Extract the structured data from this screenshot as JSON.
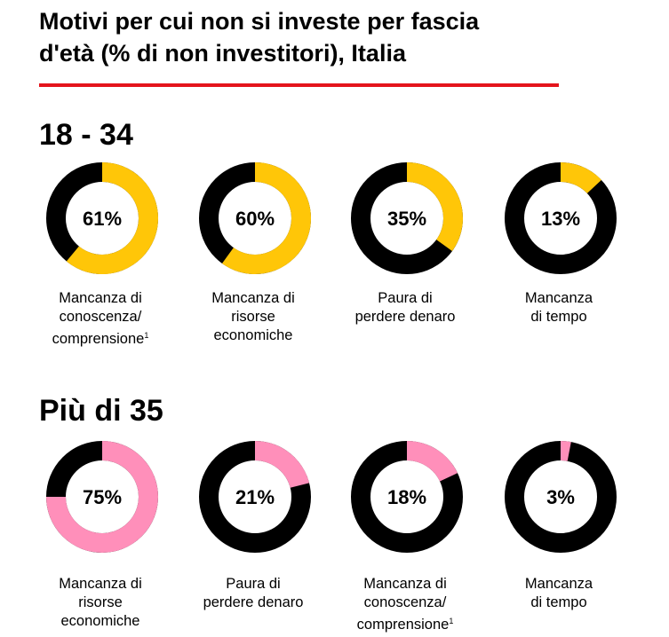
{
  "title_line1": "Motivi per cui non si investe per fascia",
  "title_line2": "d'età (% di non investitori), Italia",
  "colors": {
    "rule": "#e4151c",
    "ring_base": "#000000",
    "group1_accent": "#ffc608",
    "group2_accent": "#ff8fba"
  },
  "chart_data": [
    {
      "type": "pie",
      "group": "18 - 34",
      "accent": "#ffc608",
      "items": [
        {
          "value": 61,
          "label": "61%",
          "caption": [
            "Mancanza di",
            "conoscenza/",
            "comprensione"
          ],
          "footnote": "1"
        },
        {
          "value": 60,
          "label": "60%",
          "caption": [
            "Mancanza di",
            "risorse",
            "economiche"
          ],
          "footnote": ""
        },
        {
          "value": 35,
          "label": "35%",
          "caption": [
            "Paura di",
            "perdere denaro"
          ],
          "footnote": ""
        },
        {
          "value": 13,
          "label": "13%",
          "caption": [
            "Mancanza",
            "di tempo"
          ],
          "footnote": ""
        }
      ]
    },
    {
      "type": "pie",
      "group": "Più di 35",
      "accent": "#ff8fba",
      "items": [
        {
          "value": 75,
          "label": "75%",
          "caption": [
            "Mancanza di",
            "risorse",
            "economiche"
          ],
          "footnote": ""
        },
        {
          "value": 21,
          "label": "21%",
          "caption": [
            "Paura di",
            "perdere denaro"
          ],
          "footnote": ""
        },
        {
          "value": 18,
          "label": "18%",
          "caption": [
            "Mancanza di",
            "conoscenza/",
            "comprensione"
          ],
          "footnote": "1"
        },
        {
          "value": 3,
          "label": "3%",
          "caption": [
            "Mancanza",
            "di tempo"
          ],
          "footnote": ""
        }
      ]
    }
  ]
}
